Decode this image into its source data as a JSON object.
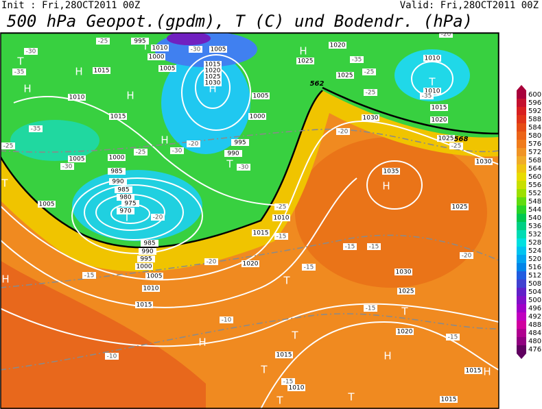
{
  "header": {
    "init": "Init : Fri,28OCT2011 00Z",
    "valid": "Valid: Fri,28OCT2011 00Z",
    "title": "500 hPa Geopot.(gpdm), T (C) und Bodendr. (hPa)"
  },
  "colorbar": {
    "ticks": [
      600,
      596,
      592,
      588,
      584,
      580,
      576,
      572,
      568,
      564,
      560,
      556,
      552,
      548,
      544,
      540,
      536,
      532,
      528,
      524,
      520,
      516,
      512,
      508,
      504,
      500,
      496,
      492,
      488,
      484,
      480,
      476
    ],
    "colors": [
      "#a8003a",
      "#c4102e",
      "#d82020",
      "#e03418",
      "#e64c14",
      "#ec6418",
      "#f07c1c",
      "#f09424",
      "#f0ac28",
      "#f0c410",
      "#e8dc00",
      "#c8e000",
      "#9ce000",
      "#60dc10",
      "#28d428",
      "#00c850",
      "#00d084",
      "#00dcb4",
      "#00e0e0",
      "#00c4f0",
      "#00a4f0",
      "#0084e8",
      "#205ce0",
      "#4040d0",
      "#6020c8",
      "#8010c8",
      "#a000c8",
      "#c000c0",
      "#d000a0",
      "#b00090",
      "#900080",
      "#600060"
    ]
  },
  "map": {
    "highs_lows": [
      "H",
      "H",
      "H",
      "H",
      "H",
      "H",
      "H",
      "H",
      "H",
      "H",
      "H",
      "T",
      "T",
      "T",
      "T",
      "T",
      "T",
      "T",
      "T",
      "T",
      "T",
      "T",
      "T"
    ],
    "pressure_labels": [
      "1015",
      "1010",
      "1015",
      "1005",
      "1000",
      "985",
      "990",
      "985",
      "980",
      "975",
      "970",
      "985",
      "990",
      "995",
      "1000",
      "1005",
      "1010",
      "1015",
      "1005",
      "1010",
      "1010",
      "1015",
      "1020",
      "1025",
      "1030",
      "1035",
      "1030",
      "1025",
      "1030",
      "1025",
      "1020",
      "1015",
      "1015",
      "1020",
      "1015",
      "1010",
      "1005",
      "1000",
      "995",
      "990",
      "1025",
      "1020",
      "1025",
      "1010",
      "1015",
      "1005",
      "1000",
      "1005",
      "995",
      "1010",
      "1015",
      "1020",
      "1025",
      "1030"
    ],
    "temperature_labels": [
      "-30",
      "-35",
      "-35",
      "-25",
      "-30",
      "-25",
      "-30",
      "-20",
      "-25",
      "-30",
      "-35",
      "-20",
      "-25",
      "-20",
      "-25",
      "-30",
      "-20",
      "-15",
      "-15",
      "-15",
      "-15",
      "-20",
      "-15",
      "-10",
      "-10",
      "-15",
      "-15",
      "-25",
      "-20",
      "-15",
      "-35",
      "-25"
    ],
    "contour_labels": [
      "562",
      "568"
    ]
  }
}
